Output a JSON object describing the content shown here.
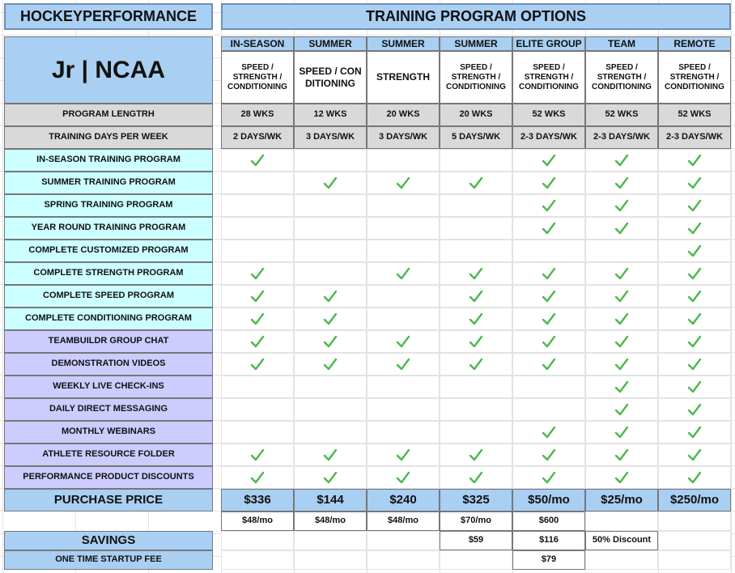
{
  "header": {
    "brand": "HOCKEYPERFORMANCE",
    "title": "TRAINING PROGRAM OPTIONS"
  },
  "level": "Jr | NCAA",
  "row_labels": {
    "length": "PROGRAM LENGTRH",
    "days": "TRAINING DAYS PER WEEK",
    "price": "PURCHASE PRICE",
    "savings": "SAVINGS",
    "startup_fee": "ONE TIME STARTUP FEE"
  },
  "programs": [
    {
      "name": "IN-SEASON",
      "focus": "SPEED / STRENGTH / CONDITIONING",
      "length": "28 WKS",
      "days": "2 DAYS/WK",
      "price": "$336",
      "price_note": "$48/mo",
      "savings": null,
      "startup_fee": null
    },
    {
      "name": "SUMMER",
      "focus": "SPEED / CONDITIONING",
      "length": "12 WKS",
      "days": "3 DAYS/WK",
      "price": "$144",
      "price_note": "$48/mo",
      "savings": null,
      "startup_fee": null
    },
    {
      "name": "SUMMER",
      "focus": "STRENGTH",
      "length": "20 WKS",
      "days": "3 DAYS/WK",
      "price": "$240",
      "price_note": "$48/mo",
      "savings": null,
      "startup_fee": null
    },
    {
      "name": "SUMMER",
      "focus": "SPEED / STRENGTH / CONDITIONING",
      "length": "20 WKS",
      "days": "5 DAYS/WK",
      "price": "$325",
      "price_note": "$70/mo",
      "savings": "$59",
      "startup_fee": null
    },
    {
      "name": "ELITE GROUP",
      "focus": "SPEED / STRENGTH / CONDITIONING",
      "length": "52 WKS",
      "days": "2-3 DAYS/WK",
      "price": "$50/mo",
      "price_note": "$600",
      "savings": "$116",
      "startup_fee": "$79"
    },
    {
      "name": "TEAM",
      "focus": "SPEED / STRENGTH / CONDITIONING",
      "length": "52 WKS",
      "days": "2-3 DAYS/WK",
      "price": "$25/mo",
      "price_note": null,
      "savings": "50% Discount",
      "startup_fee": null
    },
    {
      "name": "REMOTE",
      "focus": "SPEED / STRENGTH / CONDITIONING",
      "length": "52 WKS",
      "days": "2-3 DAYS/WK",
      "price": "$250/mo",
      "price_note": null,
      "savings": null,
      "startup_fee": null
    }
  ],
  "features": [
    {
      "label": "IN-SEASON TRAINING PROGRAM",
      "included": [
        true,
        false,
        false,
        false,
        true,
        true,
        true
      ]
    },
    {
      "label": "SUMMER TRAINING PROGRAM",
      "included": [
        false,
        true,
        true,
        true,
        true,
        true,
        true
      ]
    },
    {
      "label": "SPRING TRAINING PROGRAM",
      "included": [
        false,
        false,
        false,
        false,
        true,
        true,
        true
      ]
    },
    {
      "label": "YEAR ROUND TRAINING PROGRAM",
      "included": [
        false,
        false,
        false,
        false,
        true,
        true,
        true
      ]
    },
    {
      "label": "COMPLETE CUSTOMIZED PROGRAM",
      "included": [
        false,
        false,
        false,
        false,
        false,
        false,
        true
      ]
    },
    {
      "label": "COMPLETE STRENGTH PROGRAM",
      "included": [
        true,
        false,
        true,
        true,
        true,
        true,
        true
      ]
    },
    {
      "label": "COMPLETE SPEED PROGRAM",
      "included": [
        true,
        true,
        false,
        true,
        true,
        true,
        true
      ]
    },
    {
      "label": "COMPLETE CONDITIONING PROGRAM",
      "included": [
        true,
        true,
        false,
        true,
        true,
        true,
        true
      ]
    },
    {
      "label": "TEAMBUILDR GROUP CHAT",
      "included": [
        true,
        true,
        true,
        true,
        true,
        true,
        true
      ]
    },
    {
      "label": "DEMONSTRATION VIDEOS",
      "included": [
        true,
        true,
        true,
        true,
        true,
        true,
        true
      ]
    },
    {
      "label": "WEEKLY LIVE CHECK-INS",
      "included": [
        false,
        false,
        false,
        false,
        false,
        true,
        true
      ]
    },
    {
      "label": "DAILY DIRECT MESSAGING",
      "included": [
        false,
        false,
        false,
        false,
        false,
        true,
        true
      ]
    },
    {
      "label": "MONTHLY WEBINARS",
      "included": [
        false,
        false,
        false,
        false,
        true,
        true,
        true
      ]
    },
    {
      "label": "ATHLETE RESOURCE FOLDER",
      "included": [
        true,
        true,
        true,
        true,
        true,
        true,
        true
      ]
    },
    {
      "label": "PERFORMANCE PRODUCT DISCOUNTS",
      "included": [
        true,
        true,
        true,
        true,
        true,
        true,
        true
      ]
    }
  ]
}
